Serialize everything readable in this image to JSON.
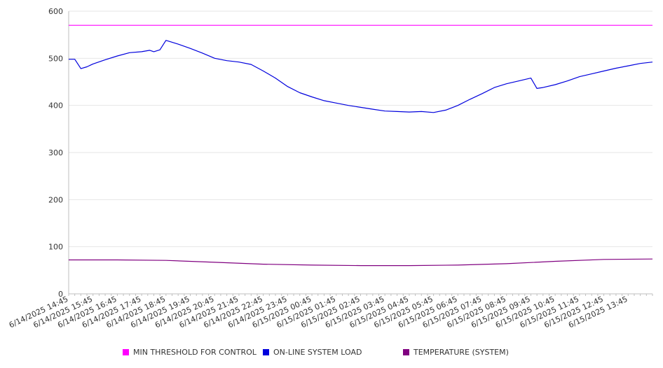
{
  "chart_data": {
    "type": "line",
    "title": "",
    "xlabel": "",
    "ylabel": "",
    "ylim": [
      0,
      600
    ],
    "y_ticks": [
      0,
      100,
      200,
      300,
      400,
      500,
      600
    ],
    "grid": true,
    "legend_position": "bottom",
    "x_tick_labels": [
      "6/14/2025 14:45",
      "6/14/2025 15:45",
      "6/14/2025 16:45",
      "6/14/2025 17:45",
      "6/14/2025 18:45",
      "6/14/2025 19:45",
      "6/14/2025 20:45",
      "6/14/2025 21:45",
      "6/14/2025 22:45",
      "6/14/2025 23:45",
      "6/15/2025 00:45",
      "6/15/2025 01:45",
      "6/15/2025 02:45",
      "6/15/2025 03:45",
      "6/15/2025 04:45",
      "6/15/2025 05:45",
      "6/15/2025 06:45",
      "6/15/2025 07:45",
      "6/15/2025 08:45",
      "6/15/2025 09:45",
      "6/15/2025 10:45",
      "6/15/2025 11:45",
      "6/15/2025 12:45",
      "6/15/2025 13:45"
    ],
    "series": [
      {
        "name": "MIN THRESHOLD FOR CONTROL",
        "color": "#ff00ff",
        "x": [
          "6/14/2025 14:45",
          "6/15/2025 14:45"
        ],
        "values": [
          570,
          570
        ]
      },
      {
        "name": "ON-LINE SYSTEM LOAD",
        "color": "#0000dd",
        "x": [
          "6/14/2025 14:45",
          "6/14/2025 15:00",
          "6/14/2025 15:15",
          "6/14/2025 15:30",
          "6/14/2025 15:45",
          "6/14/2025 16:15",
          "6/14/2025 16:45",
          "6/14/2025 17:15",
          "6/14/2025 17:45",
          "6/14/2025 18:05",
          "6/14/2025 18:15",
          "6/14/2025 18:30",
          "6/14/2025 18:45",
          "6/14/2025 19:15",
          "6/14/2025 19:45",
          "6/14/2025 20:15",
          "6/14/2025 20:45",
          "6/14/2025 21:15",
          "6/14/2025 21:45",
          "6/14/2025 22:15",
          "6/14/2025 22:45",
          "6/14/2025 23:15",
          "6/14/2025 23:45",
          "6/15/2025 00:15",
          "6/15/2025 00:45",
          "6/15/2025 01:15",
          "6/15/2025 01:45",
          "6/15/2025 02:15",
          "6/15/2025 02:45",
          "6/15/2025 03:15",
          "6/15/2025 03:45",
          "6/15/2025 04:15",
          "6/15/2025 04:45",
          "6/15/2025 05:15",
          "6/15/2025 05:45",
          "6/15/2025 06:15",
          "6/15/2025 06:45",
          "6/15/2025 07:15",
          "6/15/2025 07:45",
          "6/15/2025 08:15",
          "6/15/2025 08:45",
          "6/15/2025 09:15",
          "6/15/2025 09:45",
          "6/15/2025 10:00",
          "6/15/2025 10:15",
          "6/15/2025 10:45",
          "6/15/2025 11:15",
          "6/15/2025 11:45",
          "6/15/2025 12:15",
          "6/15/2025 12:45",
          "6/15/2025 13:15",
          "6/15/2025 13:45",
          "6/15/2025 14:15",
          "6/15/2025 14:45"
        ],
        "values": [
          498,
          498,
          478,
          482,
          488,
          497,
          505,
          512,
          514,
          517,
          514,
          518,
          538,
          530,
          521,
          511,
          500,
          495,
          492,
          487,
          473,
          458,
          440,
          427,
          418,
          410,
          405,
          400,
          396,
          392,
          388,
          387,
          386,
          387,
          385,
          390,
          400,
          413,
          425,
          438,
          446,
          452,
          458,
          436,
          438,
          444,
          452,
          461,
          467,
          473,
          479,
          484,
          489,
          492
        ]
      },
      {
        "name": "TEMPERATURE (SYSTEM)",
        "color": "#800080",
        "x": [
          "6/14/2025 14:45",
          "6/14/2025 16:45",
          "6/14/2025 18:45",
          "6/14/2025 20:45",
          "6/14/2025 22:45",
          "6/15/2025 00:45",
          "6/15/2025 02:45",
          "6/15/2025 04:45",
          "6/15/2025 06:45",
          "6/15/2025 08:45",
          "6/15/2025 10:45",
          "6/15/2025 12:45",
          "6/15/2025 14:45"
        ],
        "values": [
          72,
          72,
          71,
          67,
          63,
          61,
          60,
          60,
          61,
          64,
          69,
          73,
          74
        ]
      }
    ]
  }
}
